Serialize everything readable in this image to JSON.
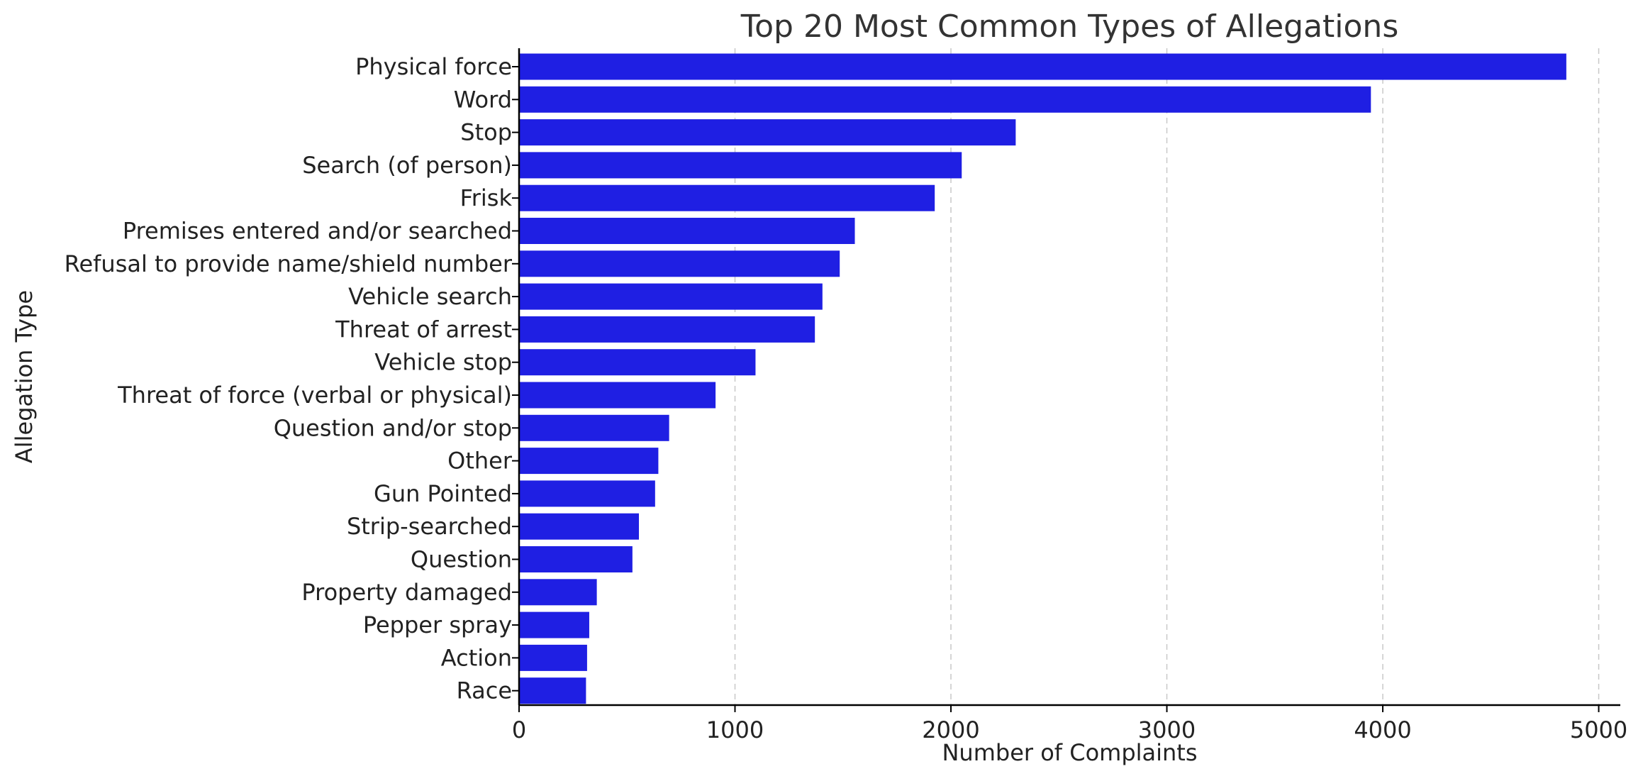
{
  "chart_data": {
    "type": "bar",
    "orientation": "horizontal",
    "title": "Top 20 Most Common Types of Allegations",
    "xlabel": "Number of Complaints",
    "ylabel": "Allegation Type",
    "categories": [
      "Physical force",
      "Word",
      "Stop",
      "Search (of person)",
      "Frisk",
      "Premises entered and/or searched",
      "Refusal to provide name/shield number",
      "Vehicle search",
      "Threat of arrest",
      "Vehicle stop",
      "Threat of force (verbal or physical)",
      "Question and/or stop",
      "Other",
      "Gun Pointed",
      "Strip-searched",
      "Question",
      "Property damaged",
      "Pepper spray",
      "Action",
      "Race"
    ],
    "values": [
      4850,
      3945,
      2300,
      2050,
      1925,
      1555,
      1485,
      1405,
      1370,
      1095,
      910,
      695,
      645,
      630,
      555,
      525,
      360,
      325,
      315,
      310
    ],
    "xlim": [
      0,
      5100
    ],
    "xticks": [
      0,
      1000,
      2000,
      3000,
      4000,
      5000
    ],
    "xtick_labels": [
      "0",
      "1000",
      "2000",
      "3000",
      "4000",
      "5000"
    ],
    "grid": "x-axis dashed",
    "bar_color": "#1f1fe3"
  }
}
